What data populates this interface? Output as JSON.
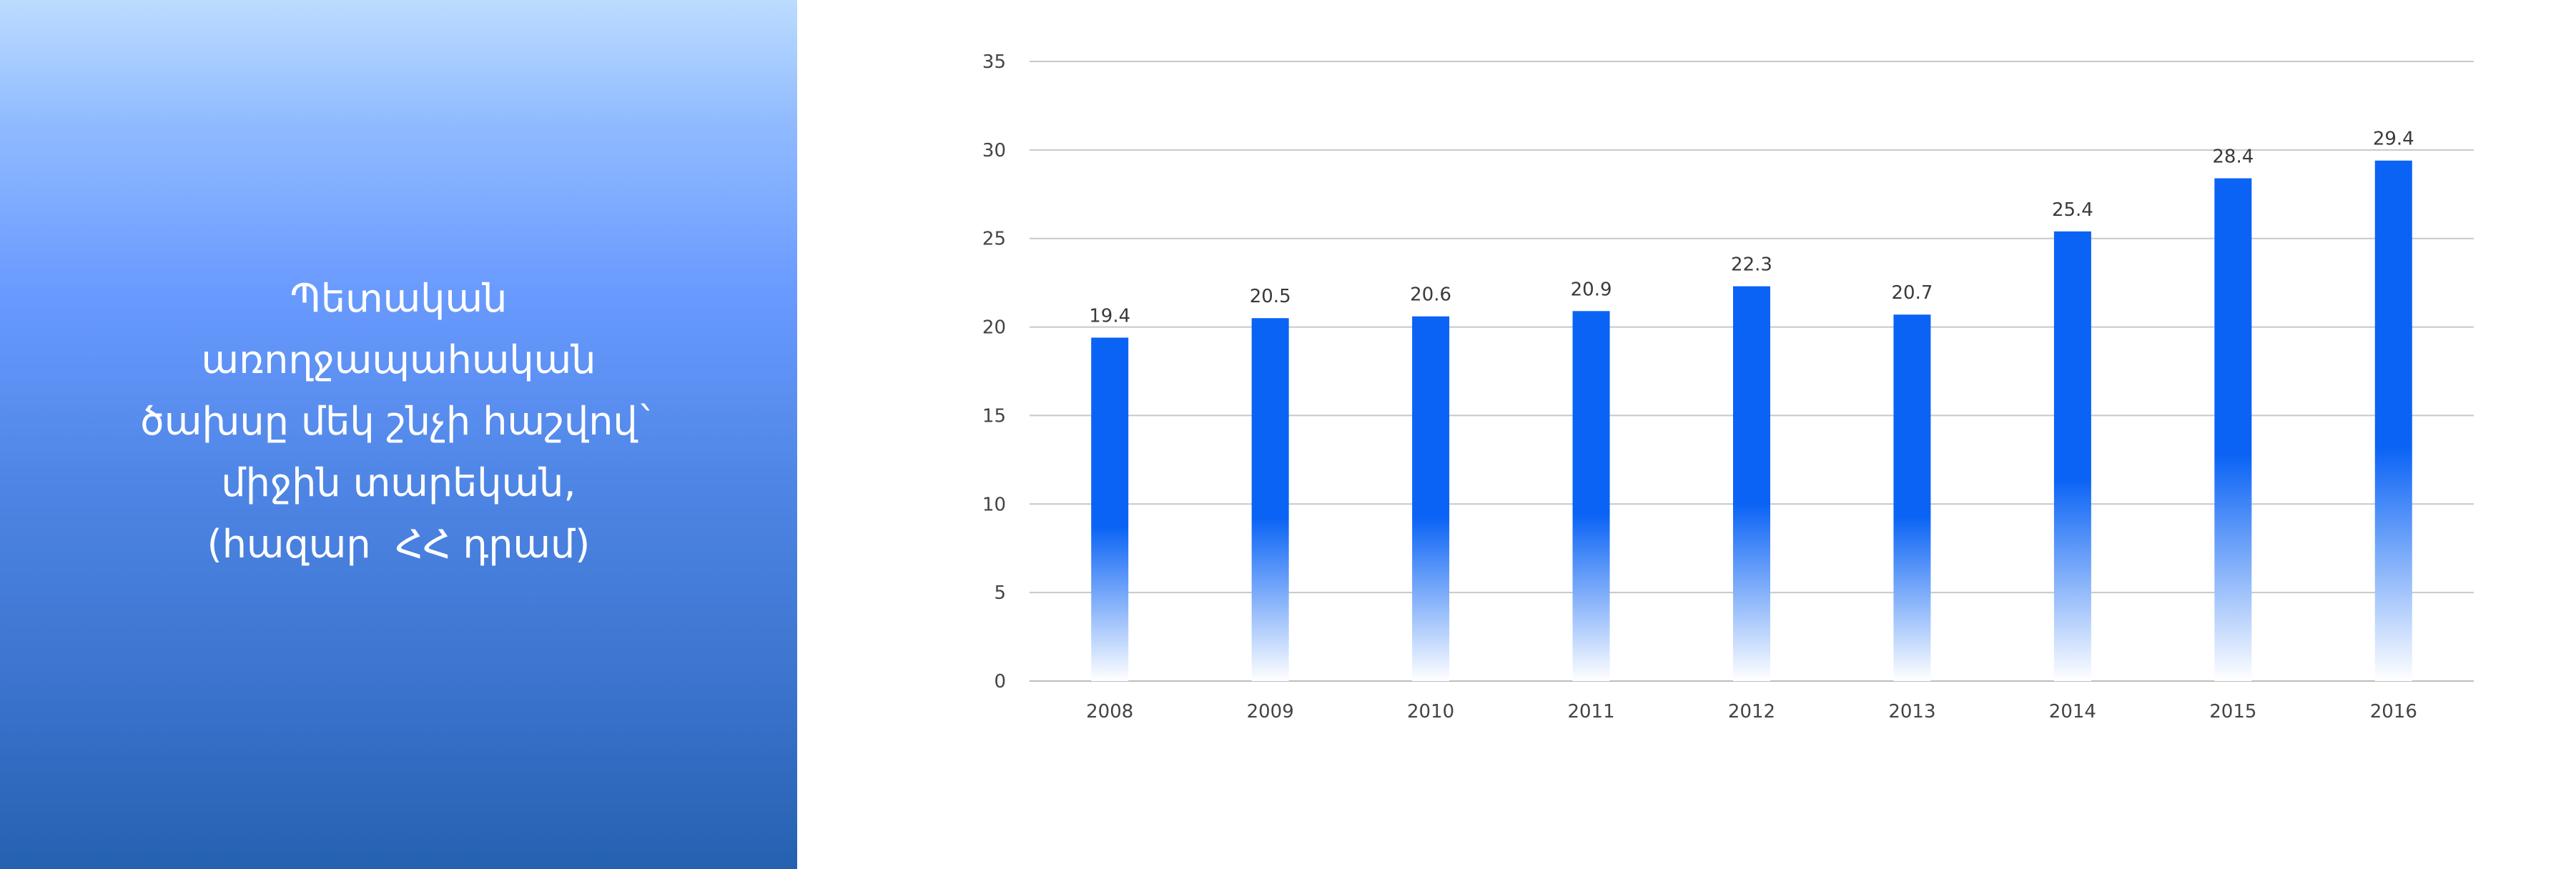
{
  "panel": {
    "title_lines": [
      "Պետական",
      "առողջապահական",
      "ծախսը մեկ շնչի հաշվով`",
      "միջին տարեկան,",
      "(հազար  ՀՀ դրամ)"
    ],
    "colors": {
      "top": "#bcdcff",
      "bottom": "#2561b0",
      "text": "#ffffff"
    }
  },
  "chart_data": {
    "type": "bar",
    "categories": [
      "2008",
      "2009",
      "2010",
      "2011",
      "2012",
      "2013",
      "2014",
      "2015",
      "2016"
    ],
    "values": [
      19.4,
      20.5,
      20.6,
      20.9,
      22.3,
      20.7,
      25.4,
      28.4,
      29.4
    ],
    "value_labels": [
      "19.4",
      "20.5",
      "20.6",
      "20.9",
      "22.3",
      "20.7",
      "25.4",
      "28.4",
      "29.4"
    ],
    "ylim": [
      0,
      35
    ],
    "yticks": [
      "0",
      "5",
      "10",
      "15",
      "20",
      "25",
      "30",
      "35"
    ],
    "grid": true,
    "legend": "none",
    "bar_color": "#0a63f5"
  }
}
